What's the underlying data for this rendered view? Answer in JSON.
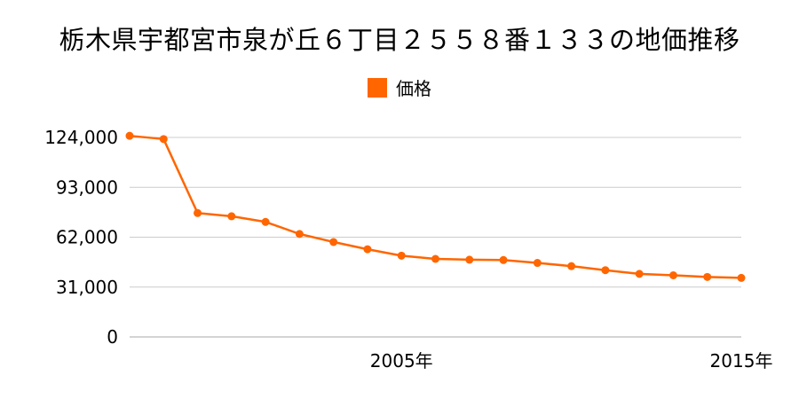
{
  "chart_data": {
    "type": "line",
    "title": "栃木県宇都宮市泉が丘６丁目２５５８番１３３の地価推移",
    "xlabel": "",
    "ylabel": "",
    "y_ticks": [
      "0",
      "31,000",
      "62,000",
      "93,000",
      "124,000"
    ],
    "y_tick_values": [
      0,
      31000,
      62000,
      93000,
      124000
    ],
    "x_tick_labels": [
      {
        "x": 2005,
        "label": "2005年"
      },
      {
        "x": 2015,
        "label": "2015年"
      }
    ],
    "xlim": [
      1997,
      2015
    ],
    "ylim": [
      0,
      124000
    ],
    "grid": "horizontal",
    "legend": "top-center",
    "colors": {
      "series": "#ff6600",
      "grid": "#cccccc"
    },
    "series": [
      {
        "name": "価格",
        "x": [
          1997,
          1998,
          1999,
          2000,
          2001,
          2002,
          2003,
          2004,
          2005,
          2006,
          2007,
          2008,
          2009,
          2010,
          2011,
          2012,
          2013,
          2014,
          2015
        ],
        "values": [
          125000,
          123000,
          77000,
          75000,
          71500,
          64000,
          59000,
          54500,
          50500,
          48500,
          48000,
          47800,
          46000,
          44000,
          41500,
          39200,
          38300,
          37300,
          36700
        ]
      }
    ]
  }
}
